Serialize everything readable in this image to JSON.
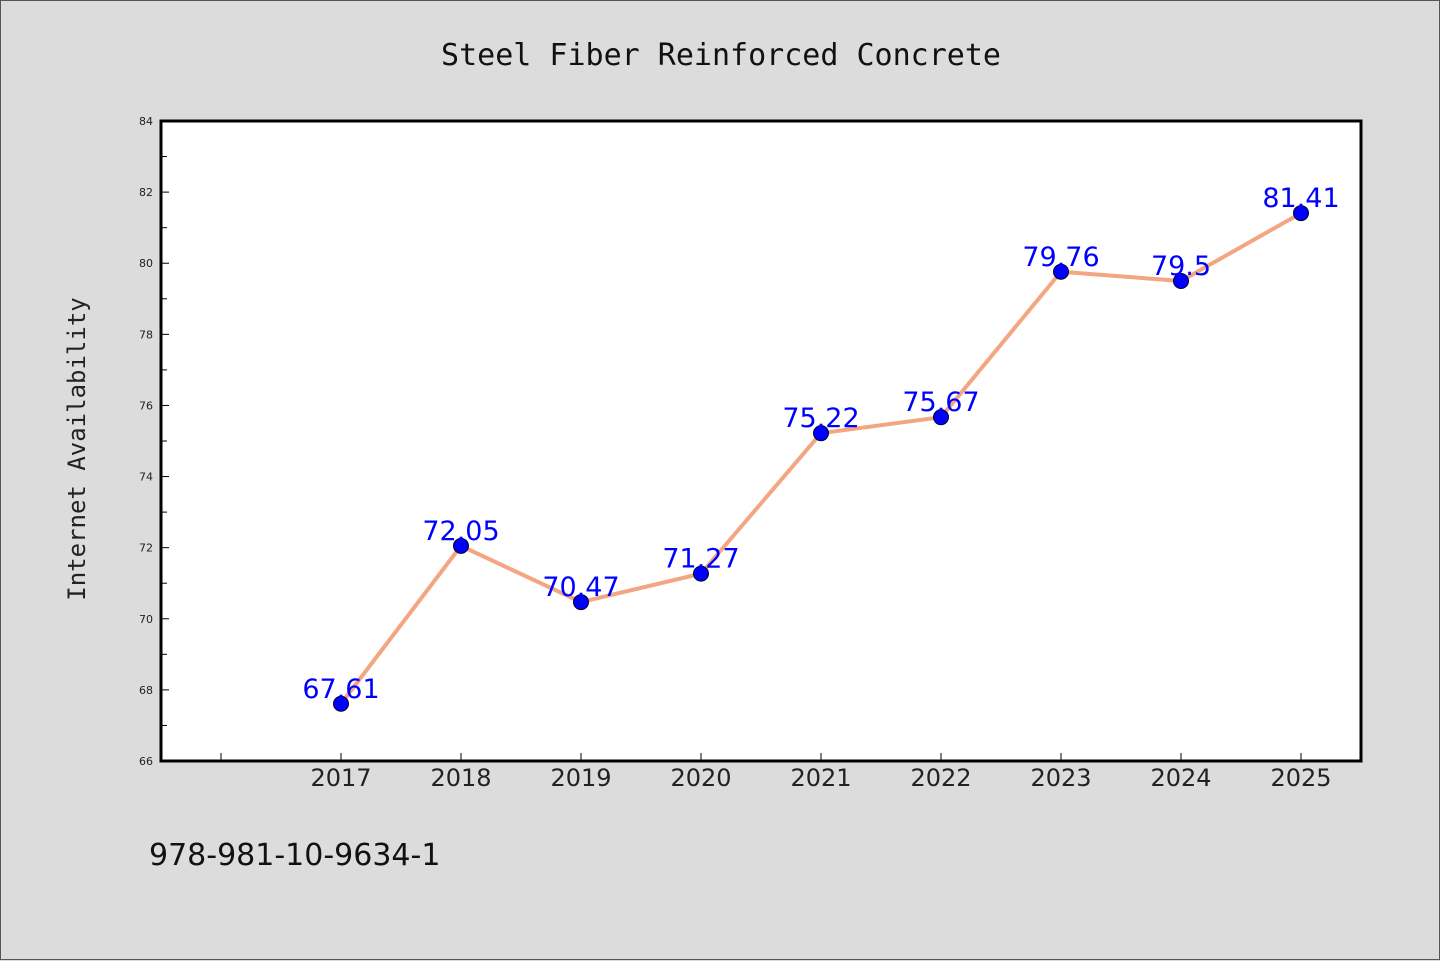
{
  "chart_data": {
    "type": "line",
    "title": "Steel Fiber Reinforced Concrete",
    "xlabel": "",
    "ylabel": "Internet Availability",
    "categories": [
      "2017",
      "2018",
      "2019",
      "2020",
      "2021",
      "2022",
      "2023",
      "2024",
      "2025"
    ],
    "series": [
      {
        "values": [
          67.61,
          72.05,
          70.47,
          71.27,
          75.22,
          75.67,
          79.76,
          79.5,
          81.41
        ],
        "data_labels": [
          "67.61",
          "72.05",
          "70.47",
          "71.27",
          "75.22",
          "75.67",
          "79.76",
          "79.5",
          "81.41"
        ]
      }
    ],
    "ylim": [
      66,
      84
    ],
    "yticks": [
      "66",
      "68",
      "70",
      "72",
      "74",
      "76",
      "78",
      "80",
      "82",
      "84"
    ],
    "grid": false,
    "colors": {
      "line": "#f4a582",
      "marker": "#0000ff",
      "data_label": "#0000ff",
      "background": "#dcdcdc",
      "plot_background": "#ffffff"
    }
  },
  "footnote": "978-981-10-9634-1"
}
